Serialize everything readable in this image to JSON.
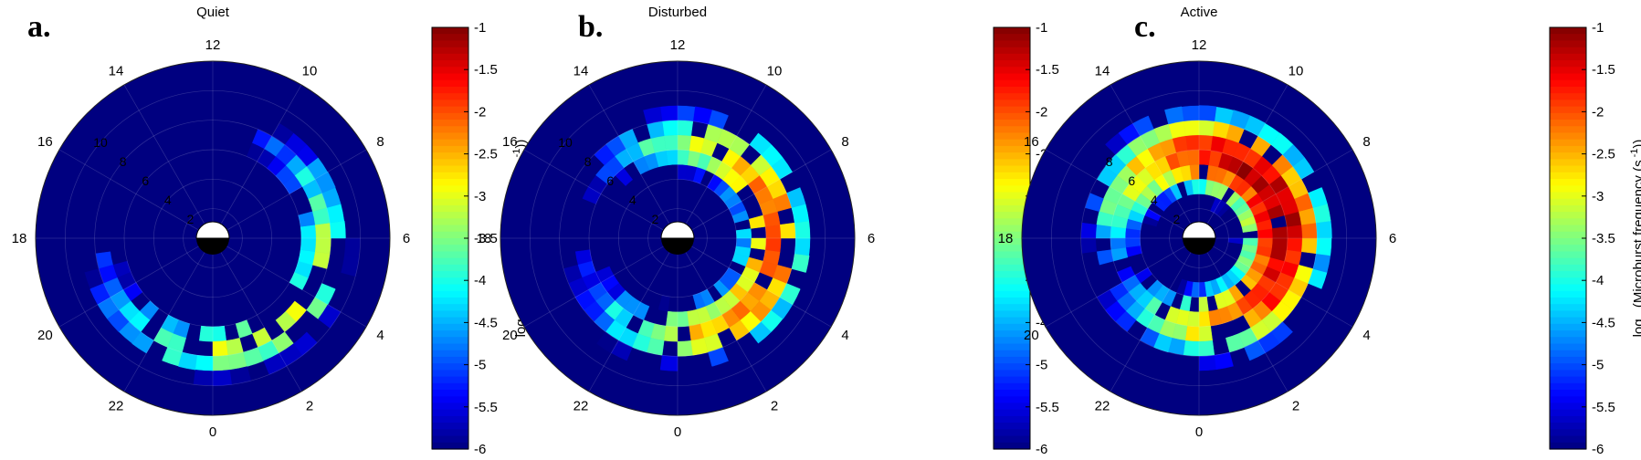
{
  "panels": [
    {
      "letter": "a.",
      "title": "Quiet"
    },
    {
      "letter": "b.",
      "title": "Disturbed"
    },
    {
      "letter": "c.",
      "title": "Active"
    }
  ],
  "colorbar": {
    "label": "log10(Microburst frequency (s^-1))",
    "ticks": [
      "-1",
      "-1.5",
      "-2",
      "-2.5",
      "-3",
      "-3.5",
      "-4",
      "-4.5",
      "-5",
      "-5.5",
      "-6"
    ],
    "colormap": "jet",
    "range": [
      -6,
      -1
    ]
  },
  "chart_data": [
    {
      "type": "heatmap",
      "projection": "polar (MLT dial)",
      "title": "Quiet",
      "mlt_labels": [
        "12",
        "10",
        "8",
        "6",
        "4",
        "2",
        "0",
        "22",
        "20",
        "18",
        "16",
        "14"
      ],
      "l_labels": [
        "2",
        "4",
        "6",
        "8",
        "10"
      ],
      "clim": [
        -6,
        -1
      ],
      "bin_grid": {
        "l_bins": 10,
        "mlt_bins": 48
      },
      "peak_log10_frequency": -3.0,
      "peak_location": "L 6-9, post-midnight to dawn (MLT 0-6)",
      "background_log10_frequency": -6
    },
    {
      "type": "heatmap",
      "projection": "polar (MLT dial)",
      "title": "Disturbed",
      "mlt_labels": [
        "12",
        "10",
        "8",
        "6",
        "4",
        "2",
        "0",
        "22",
        "20",
        "18",
        "16",
        "14"
      ],
      "l_labels": [
        "2",
        "4",
        "6",
        "8",
        "10"
      ],
      "clim": [
        -6,
        -1
      ],
      "bin_grid": {
        "l_bins": 10,
        "mlt_bins": 48
      },
      "peak_log10_frequency": -2.0,
      "peak_location": "L 5-8, dawn sector (MLT 4-8)",
      "background_log10_frequency": -6
    },
    {
      "type": "heatmap",
      "projection": "polar (MLT dial)",
      "title": "Active",
      "mlt_labels": [
        "12",
        "10",
        "8",
        "6",
        "4",
        "2",
        "0",
        "22",
        "20",
        "18",
        "16",
        "14"
      ],
      "l_labels": [
        "2",
        "4",
        "6",
        "8"
      ],
      "clim": [
        -6,
        -1
      ],
      "bin_grid": {
        "l_bins": 10,
        "mlt_bins": 48
      },
      "peak_log10_frequency": -1.2,
      "peak_location": "L 4-7, dawn to noon (MLT 6-10)",
      "background_log10_frequency": -6
    }
  ]
}
